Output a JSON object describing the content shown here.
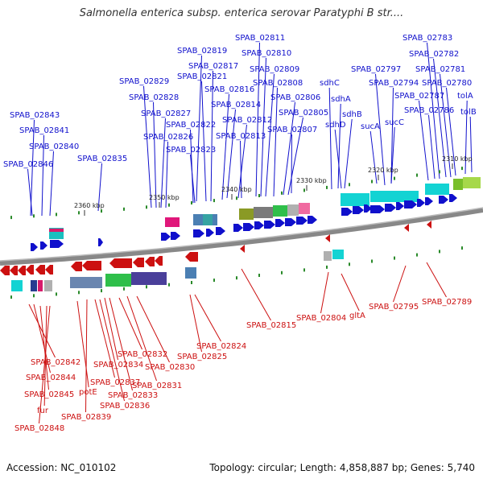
{
  "title": "Salmonella enterica subsp. enterica serovar Paratyphi B str....",
  "footer": {
    "accession": "Accession: NC_010102",
    "stats": "Topology: circular; Length: 4,858,887 bp; Genes: 5,740"
  },
  "colors": {
    "forward": "#1010cc",
    "reverse": "#cc1010",
    "backbone": "#888888",
    "tick_mark": "#2a8a2a"
  },
  "ticks": [
    "2360 kbp",
    "2350 kbp",
    "2340 kbp",
    "2330 kbp",
    "2320 kbp",
    "2310 kbp"
  ],
  "forward_labels": [
    "SPAB_02843",
    "SPAB_02841",
    "SPAB_02840",
    "SPAB_02846",
    "SPAB_02835",
    "SPAB_02829",
    "SPAB_02828",
    "SPAB_02827",
    "SPAB_02826",
    "SPAB_02822",
    "SPAB_02823",
    "SPAB_02821",
    "SPAB_02819",
    "SPAB_02817",
    "SPAB_02816",
    "SPAB_02814",
    "SPAB_02812",
    "SPAB_02813",
    "SPAB_02811",
    "SPAB_02810",
    "SPAB_02809",
    "SPAB_02808",
    "SPAB_02806",
    "SPAB_02805",
    "SPAB_02807",
    "sdhC",
    "sdhA",
    "sdhB",
    "sdhD",
    "SPAB_02797",
    "SPAB_02794",
    "sucA",
    "sucC",
    "SPAB_02783",
    "SPAB_02782",
    "SPAB_02781",
    "SPAB_02780",
    "SPAB_02787",
    "SPAB_02786",
    "tolA",
    "tolB"
  ],
  "reverse_labels": [
    "SPAB_02842",
    "SPAB_02844",
    "SPAB_02845",
    "fur",
    "SPAB_02848",
    "potE",
    "SPAB_02839",
    "SPAB_02837",
    "SPAB_02836",
    "SPAB_02834",
    "SPAB_02833",
    "SPAB_02832",
    "SPAB_02831",
    "SPAB_02830",
    "SPAB_02825",
    "SPAB_02824",
    "SPAB_02815",
    "SPAB_02804",
    "gltA",
    "SPAB_02795",
    "SPAB_02789"
  ]
}
